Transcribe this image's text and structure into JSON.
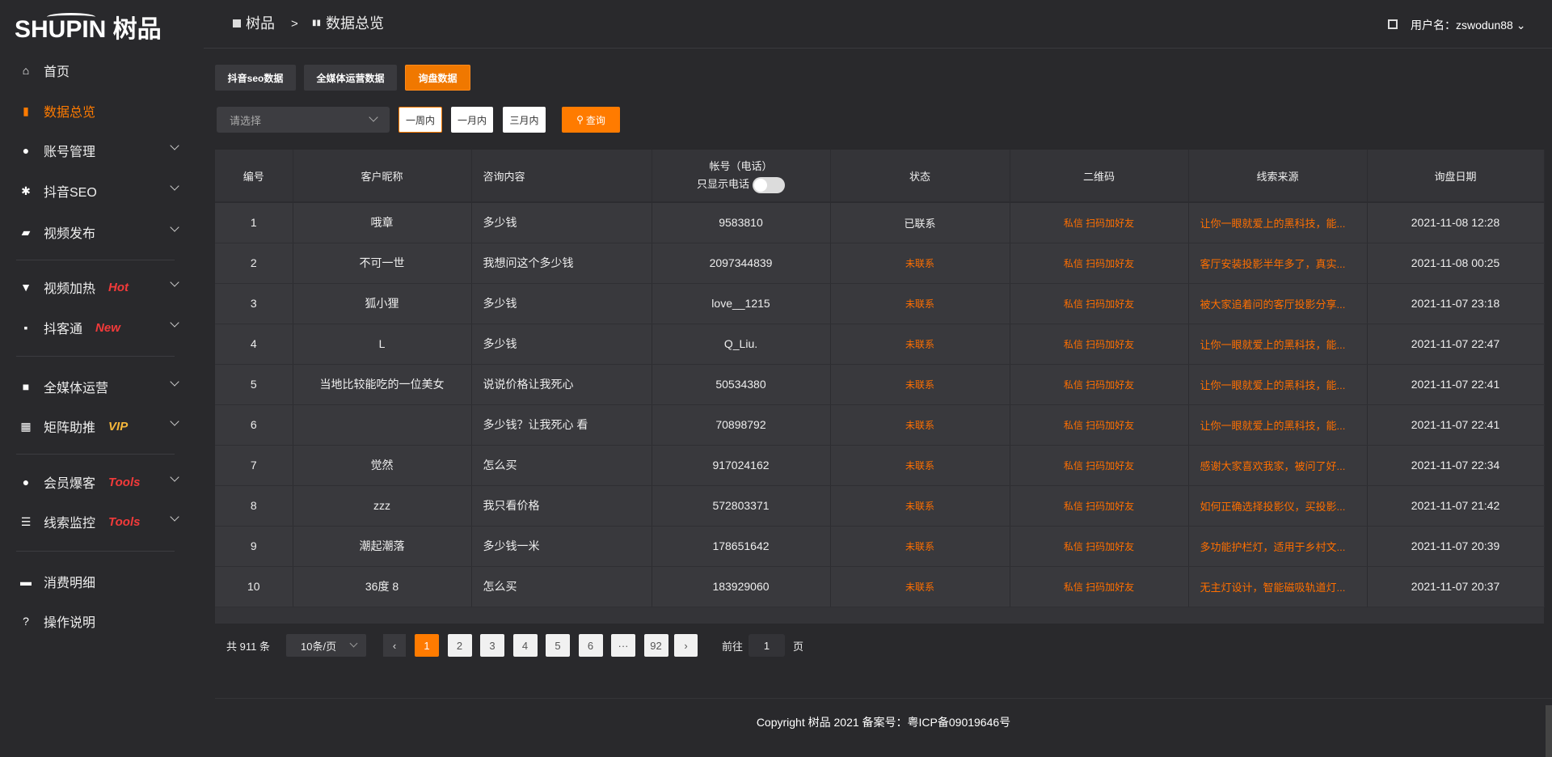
{
  "brand": {
    "logo_text": "SHUPIN 树品"
  },
  "header": {
    "breadcrumb": [
      "树品",
      "数据总览"
    ],
    "separator": ">",
    "fullscreen_icon": "fullscreen-icon",
    "username": "用户名：zswodun88"
  },
  "sidebar": {
    "items": [
      {
        "label": "首页",
        "icon": "home-icon",
        "glyph": "⌂"
      },
      {
        "label": "数据总览",
        "icon": "bar-chart-icon",
        "glyph": "▮",
        "active": true
      },
      {
        "label": "账号管理",
        "icon": "user-icon",
        "glyph": "●",
        "chevron": true
      },
      {
        "label": "抖音SEO",
        "icon": "gear-icon",
        "glyph": "✱",
        "chevron": true
      },
      {
        "label": "视频发布",
        "icon": "camera-icon",
        "glyph": "▰",
        "chevron": true
      },
      {
        "label": "视频加热",
        "icon": "monitor-icon",
        "glyph": "▼",
        "chevron": true,
        "badge": "Hot",
        "badge_color": "#f23a3a"
      },
      {
        "label": "抖客通",
        "icon": "chat-icon",
        "glyph": "▪",
        "chevron": true,
        "badge": "New",
        "badge_color": "#f23a3a"
      },
      {
        "label": "全媒体运营",
        "icon": "desktop-icon",
        "glyph": "■",
        "chevron": true
      },
      {
        "label": "矩阵助推",
        "icon": "grid-icon",
        "glyph": "▦",
        "chevron": true,
        "badge": "VIP",
        "badge_color": "#f5b73b"
      },
      {
        "label": "会员爆客",
        "icon": "member-icon",
        "glyph": "●",
        "chevron": true,
        "badge": "Tools",
        "badge_color": "#f23a3a"
      },
      {
        "label": "线索监控",
        "icon": "sliders-icon",
        "glyph": "☰",
        "chevron": true,
        "badge": "Tools",
        "badge_color": "#f23a3a"
      },
      {
        "label": "消费明细",
        "icon": "wallet-icon",
        "glyph": "▬"
      },
      {
        "label": "操作说明",
        "icon": "help-icon",
        "glyph": "?"
      }
    ]
  },
  "tabs": [
    {
      "label": "抖音seo数据"
    },
    {
      "label": "全媒体运营数据"
    },
    {
      "label": "询盘数据",
      "active": true
    }
  ],
  "filters": {
    "select_placeholder": "请选择",
    "ranges": [
      "一周内",
      "一月内",
      "三月内"
    ],
    "active_range": "一周内",
    "search_label": "查询"
  },
  "table": {
    "headers": [
      "编号",
      "客户昵称",
      "咨询内容",
      "帐号（电话）",
      "状态",
      "二维码",
      "线索来源",
      "询盘日期"
    ],
    "phone_toggle_label": "只显示电话",
    "phone_toggle_on": false,
    "rows": [
      [
        "1",
        "哦章",
        "多少钱",
        "9583810",
        "已联系",
        "私信 扫码加好友",
        "让你一眼就爱上的黑科技，能...",
        "2021-11-08 12:28"
      ],
      [
        "2",
        "不可一世",
        "我想问这个多少钱",
        "2097344839",
        "未联系",
        "私信 扫码加好友",
        "客厅安装投影半年多了，真实...",
        "2021-11-08 00:25"
      ],
      [
        "3",
        "狐小狸",
        "多少钱",
        "love__1215",
        "未联系",
        "私信 扫码加好友",
        "被大家追着问的客厅投影分享...",
        "2021-11-07 23:18"
      ],
      [
        "4",
        "L",
        "多少钱",
        "Q_Liu.",
        "未联系",
        "私信 扫码加好友",
        "让你一眼就爱上的黑科技，能...",
        "2021-11-07 22:47"
      ],
      [
        "5",
        "当地比较能吃的一位美女",
        "说说价格让我死心",
        "50534380",
        "未联系",
        "私信 扫码加好友",
        "让你一眼就爱上的黑科技，能...",
        "2021-11-07 22:41"
      ],
      [
        "6",
        "",
        "多少钱？让我死心 看",
        "70898792",
        "未联系",
        "私信 扫码加好友",
        "让你一眼就爱上的黑科技，能...",
        "2021-11-07 22:41"
      ],
      [
        "7",
        "觉然",
        "怎么买",
        "917024162",
        "未联系",
        "私信 扫码加好友",
        "感谢大家喜欢我家，被问了好...",
        "2021-11-07 22:34"
      ],
      [
        "8",
        "zzz",
        "我只看价格",
        "572803371",
        "未联系",
        "私信 扫码加好友",
        "如何正确选择投影仪，买投影...",
        "2021-11-07 21:42"
      ],
      [
        "9",
        "潮起潮落",
        "多少钱一米",
        "178651642",
        "未联系",
        "私信 扫码加好友",
        "多功能护栏灯，适用于乡村文...",
        "2021-11-07 20:39"
      ],
      [
        "10",
        "36度 8",
        "怎么买",
        "183929060",
        "未联系",
        "私信 扫码加好友",
        "无主灯设计，智能磁吸轨道灯...",
        "2021-11-07 20:37"
      ]
    ]
  },
  "pagination": {
    "total": "共 911 条",
    "page_size": "10条/页",
    "pages": [
      "1",
      "2",
      "3",
      "4",
      "5",
      "6",
      "···",
      "92"
    ],
    "current": "1",
    "goto_label": "前往",
    "goto_value": "1",
    "page_suffix": "页"
  },
  "footer": {
    "copyright": "Copyright 树品 2021 备案号：粤ICP备09019646号"
  },
  "colors": {
    "accent": "#ff7b00",
    "source_text": "#ff6f00",
    "hot_badge": "#f23a3a",
    "vip_badge": "#f5b73b"
  }
}
